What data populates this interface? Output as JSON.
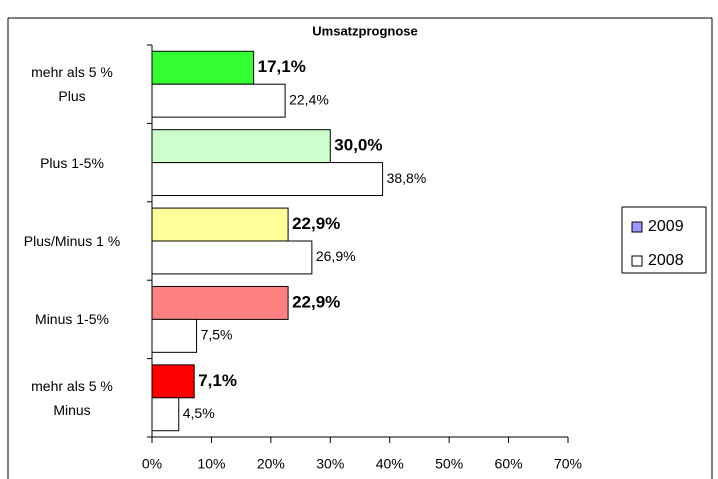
{
  "chart_data": {
    "type": "hbar",
    "title": "Umsatzprognose",
    "categories": [
      "mehr als 5 %\nPlus",
      "Plus 1-5%",
      "Plus/Minus 1 %",
      "Minus 1-5%",
      "mehr als 5 %\nMinus"
    ],
    "series": [
      {
        "name": "2009",
        "color": "#9999ff",
        "point_colors": [
          "#33ff33",
          "#ccffcc",
          "#ffff99",
          "#ff8080",
          "#ff0000"
        ],
        "values": [
          17.1,
          30.0,
          22.9,
          22.9,
          7.1
        ],
        "value_labels": [
          "17,1%",
          "30,0%",
          "22,9%",
          "22,9%",
          "7,1%"
        ]
      },
      {
        "name": "2008",
        "color": "#ffffff",
        "values": [
          22.4,
          38.8,
          26.9,
          7.5,
          4.5
        ],
        "value_labels": [
          "22,4%",
          "38,8%",
          "26,9%",
          "7,5%",
          "4,5%"
        ]
      }
    ],
    "xlim": [
      0,
      70
    ],
    "xticks": [
      {
        "value": 0,
        "label": "0%"
      },
      {
        "value": 10,
        "label": "10%"
      },
      {
        "value": 20,
        "label": "20%"
      },
      {
        "value": 30,
        "label": "30%"
      },
      {
        "value": 40,
        "label": "40%"
      },
      {
        "value": 50,
        "label": "50%"
      },
      {
        "value": 60,
        "label": "60%"
      },
      {
        "value": 70,
        "label": "70%"
      }
    ],
    "legend": "right"
  }
}
